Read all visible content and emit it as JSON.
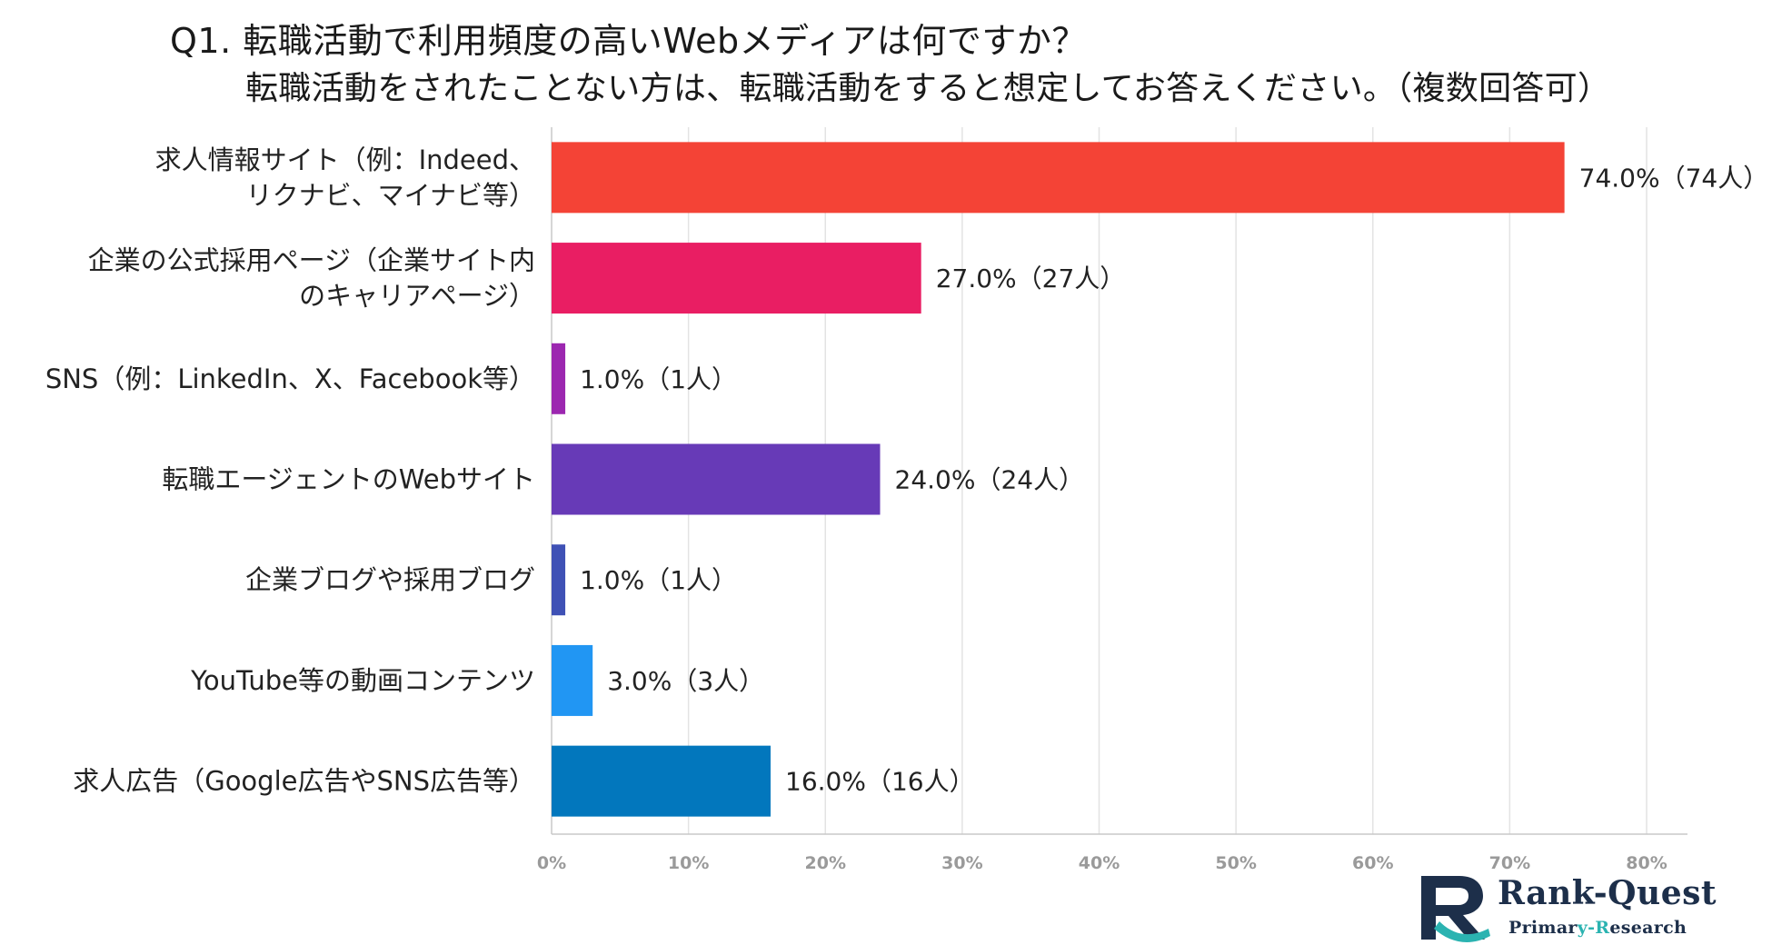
{
  "title_line1": "Q1. 転職活動で利用頻度の高いWebメディアは何ですか？",
  "title_line2": "転職活動をされたことない方は、転職活動をすると想定してお答えください。（複数回答可）",
  "chart_data": {
    "type": "bar",
    "orientation": "horizontal",
    "title": "Q1. 転職活動で利用頻度の高いWebメディアは何ですか？",
    "subtitle": "転職活動をされたことない方は、転職活動をすると想定してお答えください。（複数回答可）",
    "xlabel": "",
    "ylabel": "",
    "xlim": [
      0,
      80
    ],
    "grid": true,
    "x_ticks": [
      "0%",
      "10%",
      "20%",
      "30%",
      "40%",
      "50%",
      "60%",
      "70%",
      "80%"
    ],
    "categories": [
      [
        "求人情報サイト（例：Indeed、",
        "リクナビ、マイナビ等）"
      ],
      [
        "企業の公式採用ページ（企業サイト内",
        "のキャリアページ）"
      ],
      [
        "SNS（例：LinkedIn、X、Facebook等）"
      ],
      [
        "転職エージェントのWebサイト"
      ],
      [
        "企業ブログや採用ブログ"
      ],
      [
        "YouTube等の動画コンテンツ"
      ],
      [
        "求人広告（Google広告やSNS広告等）"
      ]
    ],
    "values": [
      74.0,
      27.0,
      1.0,
      24.0,
      1.0,
      3.0,
      16.0
    ],
    "value_labels": [
      "74.0%（74人）",
      "27.0%（27人）",
      "1.0%（1人）",
      "24.0%（24人）",
      "1.0%（1人）",
      "3.0%（3人）",
      "16.0%（16人）"
    ],
    "colors": [
      "#f44336",
      "#e91e63",
      "#9c27b0",
      "#673ab7",
      "#3f51b5",
      "#2196f3",
      "#0277bd"
    ]
  },
  "logo": {
    "name": "Rank-Quest",
    "sub_prefix": "Primar",
    "sub_accent": "y-R",
    "sub_suffix": "esearch",
    "mark_letter": "R",
    "navy": "#1d2f4a",
    "teal": "#2bb3b1"
  }
}
